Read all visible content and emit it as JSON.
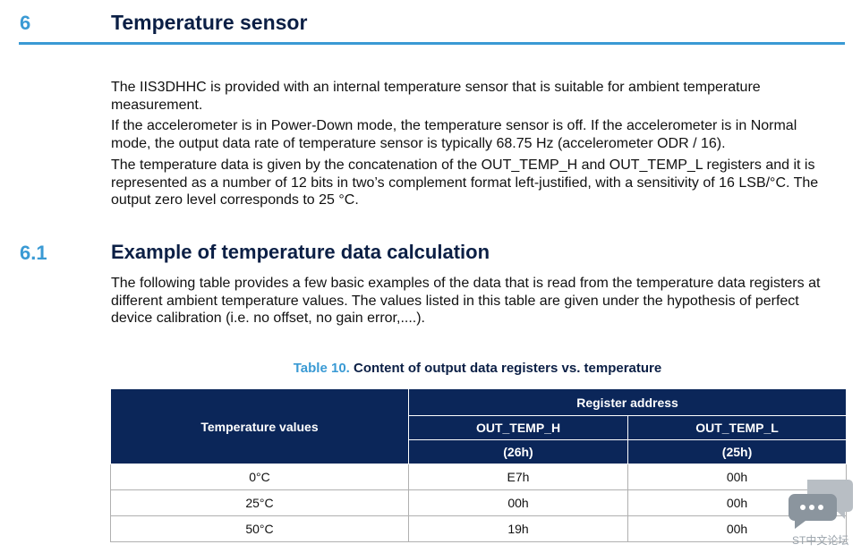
{
  "sections": [
    {
      "number": "6",
      "title": "Temperature sensor",
      "paragraphs": [
        "The IIS3DHHC is provided with an internal temperature sensor that is suitable for ambient temperature measurement.",
        "If the accelerometer is in Power-Down mode, the temperature sensor is off. If the accelerometer is in Normal mode, the output data rate of temperature sensor is typically 68.75 Hz (accelerometer ODR / 16).",
        "The temperature data is given by the concatenation of the OUT_TEMP_H and OUT_TEMP_L registers and it is represented as a number of 12 bits in two’s complement format left-justified, with a sensitivity of 16 LSB/°C. The output zero level corresponds to 25 °C."
      ]
    },
    {
      "number": "6.1",
      "title": "Example of temperature data calculation",
      "paragraphs": [
        "The following table provides a few basic examples of the data that is read from the temperature data registers at different ambient temperature values. The values listed in this table are given under the hypothesis of perfect device calibration (i.e. no offset, no gain error,....)."
      ]
    }
  ],
  "table": {
    "caption_label": "Table 10.",
    "caption_text": "Content of output data registers vs. temperature",
    "header": {
      "col1": "Temperature values",
      "group": "Register address",
      "col2": "OUT_TEMP_H",
      "col2_addr": "(26h)",
      "col3": "OUT_TEMP_L",
      "col3_addr": "(25h)"
    },
    "rows": [
      [
        "0°C",
        "E7h",
        "00h"
      ],
      [
        "25°C",
        "00h",
        "00h"
      ],
      [
        "50°C",
        "19h",
        "00h"
      ]
    ]
  },
  "watermark": "ST中文论坛"
}
